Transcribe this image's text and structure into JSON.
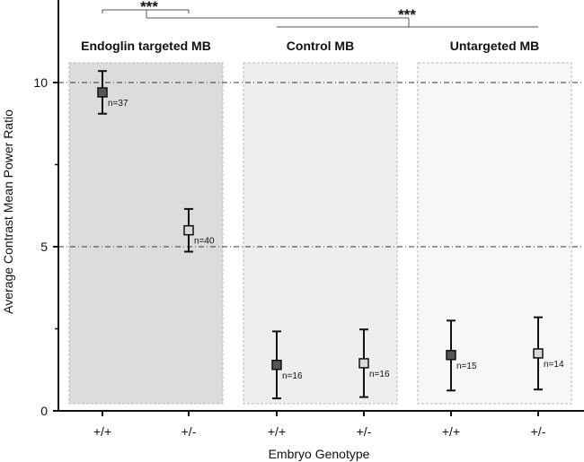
{
  "chart_data": {
    "type": "scatter",
    "ylabel": "Average Contrast Mean Power Ratio",
    "xlabel": "Embryo Genotype",
    "ylim": [
      0,
      12.4
    ],
    "yticks": [
      "0",
      "5",
      "10"
    ],
    "ytick_values": [
      0,
      5,
      10
    ],
    "reference_lines": [
      5,
      10
    ],
    "groups": [
      {
        "name": "Endoglin targeted MB",
        "shade": "#dcdcdc"
      },
      {
        "name": "Control MB",
        "shade": "#eeeeee"
      },
      {
        "name": "Untargeted MB",
        "shade": "#f7f7f7"
      }
    ],
    "points": [
      {
        "group": 0,
        "genotype": "+/+",
        "mean": 9.7,
        "low": 9.05,
        "high": 10.35,
        "n_label": "n=37",
        "fill": "#555555"
      },
      {
        "group": 0,
        "genotype": "+/-",
        "mean": 5.5,
        "low": 4.85,
        "high": 6.15,
        "n_label": "n=40",
        "fill": "#d9d9d9"
      },
      {
        "group": 1,
        "genotype": "+/+",
        "mean": 1.4,
        "low": 0.38,
        "high": 2.42,
        "n_label": "n=16",
        "fill": "#555555"
      },
      {
        "group": 1,
        "genotype": "+/-",
        "mean": 1.45,
        "low": 0.42,
        "high": 2.48,
        "n_label": "n=16",
        "fill": "#d9d9d9"
      },
      {
        "group": 2,
        "genotype": "+/+",
        "mean": 1.7,
        "low": 0.62,
        "high": 2.75,
        "n_label": "n=15",
        "fill": "#555555"
      },
      {
        "group": 2,
        "genotype": "+/-",
        "mean": 1.75,
        "low": 0.65,
        "high": 2.85,
        "n_label": "n=14",
        "fill": "#d9d9d9"
      }
    ],
    "significance": [
      {
        "label": "***",
        "between": "Endoglin targeted MB +/+ vs +/-"
      },
      {
        "label": "***",
        "between": "Endoglin targeted MB vs Control MB / Untargeted MB"
      }
    ]
  }
}
